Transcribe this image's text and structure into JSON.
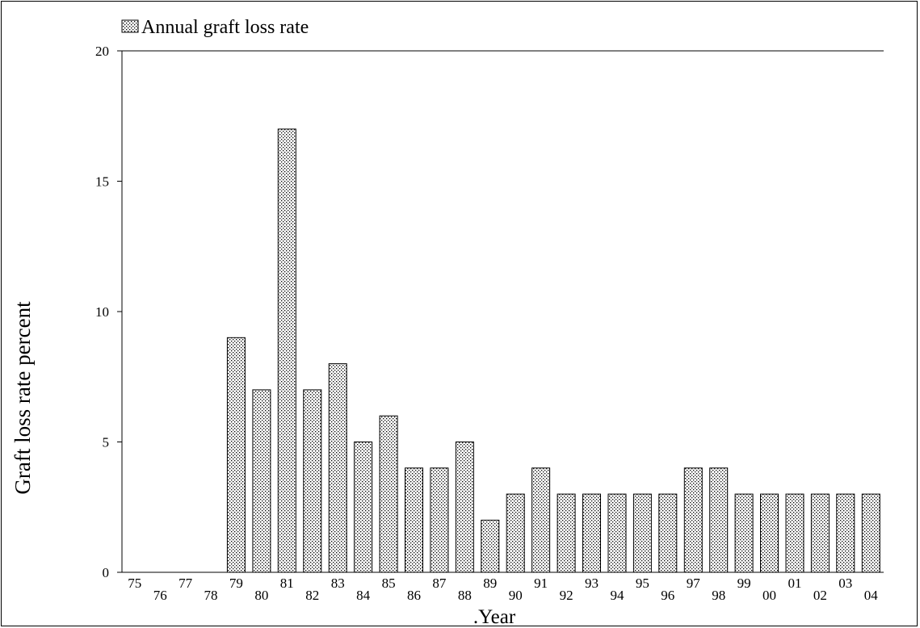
{
  "chart_data": {
    "type": "bar",
    "legend": {
      "label": "Annual graft loss rate",
      "position": "top-left"
    },
    "xlabel": ".Year",
    "ylabel": "Graft loss rate percent",
    "ylim": [
      0,
      20
    ],
    "yticks": [
      "0",
      "5",
      "10",
      "15",
      "20"
    ],
    "categories": [
      "75",
      "76",
      "77",
      "78",
      "79",
      "80",
      "81",
      "82",
      "83",
      "84",
      "85",
      "86",
      "87",
      "88",
      "89",
      "90",
      "91",
      "92",
      "93",
      "94",
      "95",
      "96",
      "97",
      "98",
      "99",
      "00",
      "01",
      "02",
      "03",
      "04"
    ],
    "series": [
      {
        "name": "Annual graft loss rate",
        "values": [
          0,
          0,
          0,
          0,
          9,
          7,
          17,
          7,
          8,
          5,
          6,
          4,
          4,
          5,
          2,
          3,
          4,
          3,
          3,
          3,
          3,
          3,
          4,
          4,
          3,
          3,
          3,
          3,
          3,
          3
        ]
      }
    ],
    "grid": false
  }
}
